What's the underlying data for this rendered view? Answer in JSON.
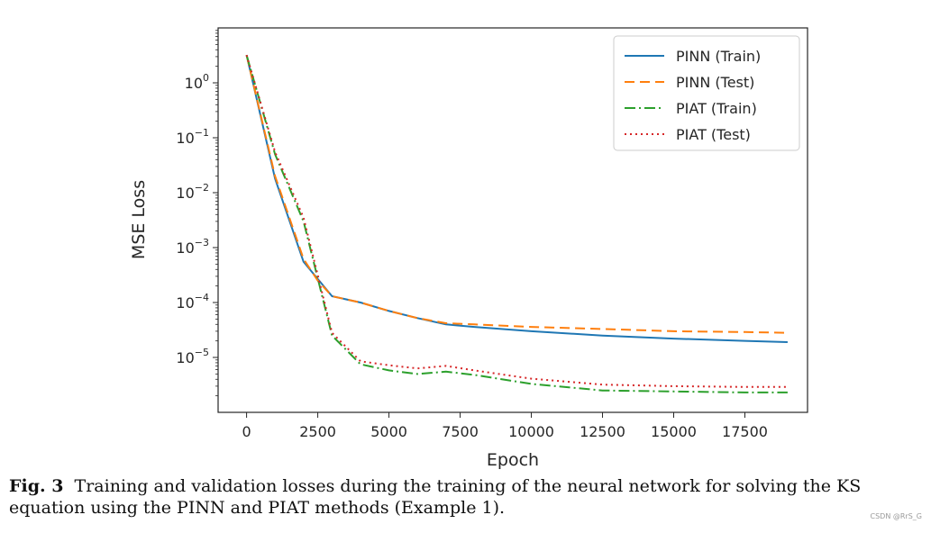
{
  "chart_data": {
    "type": "line",
    "xlabel": "Epoch",
    "ylabel": "MSE Loss",
    "yscale": "log",
    "xlim": [
      -1000,
      19700
    ],
    "ylim": [
      1e-06,
      10
    ],
    "xticks": [
      {
        "value": 0,
        "label": "0"
      },
      {
        "value": 2500,
        "label": "2500"
      },
      {
        "value": 5000,
        "label": "5000"
      },
      {
        "value": 7500,
        "label": "7500"
      },
      {
        "value": 10000,
        "label": "10000"
      },
      {
        "value": 12500,
        "label": "12500"
      },
      {
        "value": 15000,
        "label": "15000"
      },
      {
        "value": 17500,
        "label": "17500"
      }
    ],
    "yticks": [
      {
        "value": 1,
        "mantissa": "10",
        "exp": "0"
      },
      {
        "value": 0.1,
        "mantissa": "10",
        "exp": "−1"
      },
      {
        "value": 0.01,
        "mantissa": "10",
        "exp": "−2"
      },
      {
        "value": 0.001,
        "mantissa": "10",
        "exp": "−3"
      },
      {
        "value": 0.0001,
        "mantissa": "10",
        "exp": "−4"
      },
      {
        "value": 1e-05,
        "mantissa": "10",
        "exp": "−5"
      }
    ],
    "grid": false,
    "legend_position": "top-right",
    "series": [
      {
        "name": "PINN (Train)",
        "color": "#1f77b4",
        "dash": "",
        "x": [
          0,
          1000,
          2000,
          3000,
          4000,
          5000,
          6000,
          7000,
          8000,
          10000,
          12500,
          15000,
          17500,
          19000
        ],
        "y": [
          3.2,
          0.018,
          0.00055,
          0.00013,
          0.0001,
          7e-05,
          5.2e-05,
          4e-05,
          3.6e-05,
          3e-05,
          2.5e-05,
          2.2e-05,
          2e-05,
          1.9e-05
        ]
      },
      {
        "name": "PINN (Test)",
        "color": "#ff7f0e",
        "dash": "11,6",
        "x": [
          0,
          1000,
          2000,
          2500,
          3000,
          4000,
          5000,
          6000,
          7000,
          8000,
          10000,
          12500,
          15000,
          17500,
          19000
        ],
        "y": [
          3.2,
          0.02,
          0.00062,
          0.00025,
          0.00013,
          0.0001,
          7e-05,
          5.2e-05,
          4.2e-05,
          4e-05,
          3.6e-05,
          3.3e-05,
          3e-05,
          2.9e-05,
          2.8e-05
        ]
      },
      {
        "name": "PIAT (Train)",
        "color": "#2ca02c",
        "dash": "12,4,2,4",
        "x": [
          0,
          1000,
          2000,
          3000,
          4000,
          5000,
          6000,
          7000,
          8000,
          10000,
          12500,
          15000,
          17500,
          19000
        ],
        "y": [
          3.2,
          0.05,
          0.003,
          2.5e-05,
          7.5e-06,
          5.8e-06,
          5e-06,
          5.5e-06,
          4.8e-06,
          3.3e-06,
          2.5e-06,
          2.4e-06,
          2.3e-06,
          2.3e-06
        ]
      },
      {
        "name": "PIAT (Test)",
        "color": "#d62728",
        "dash": "2,4",
        "x": [
          0,
          1000,
          2000,
          3000,
          4000,
          5000,
          6000,
          7000,
          8000,
          10000,
          12500,
          15000,
          17500,
          19000
        ],
        "y": [
          3.2,
          0.055,
          0.0035,
          2.8e-05,
          8.5e-06,
          7.2e-06,
          6.3e-06,
          7e-06,
          5.8e-06,
          4.1e-06,
          3.2e-06,
          3e-06,
          2.9e-06,
          2.9e-06
        ]
      }
    ]
  },
  "caption": {
    "label": "Fig. 3",
    "text": "Training and validation losses during the training of the neural network for solving the KS equation using the PINN and PIAT methods (Example 1)."
  },
  "watermark": "CSDN @RrS_G"
}
